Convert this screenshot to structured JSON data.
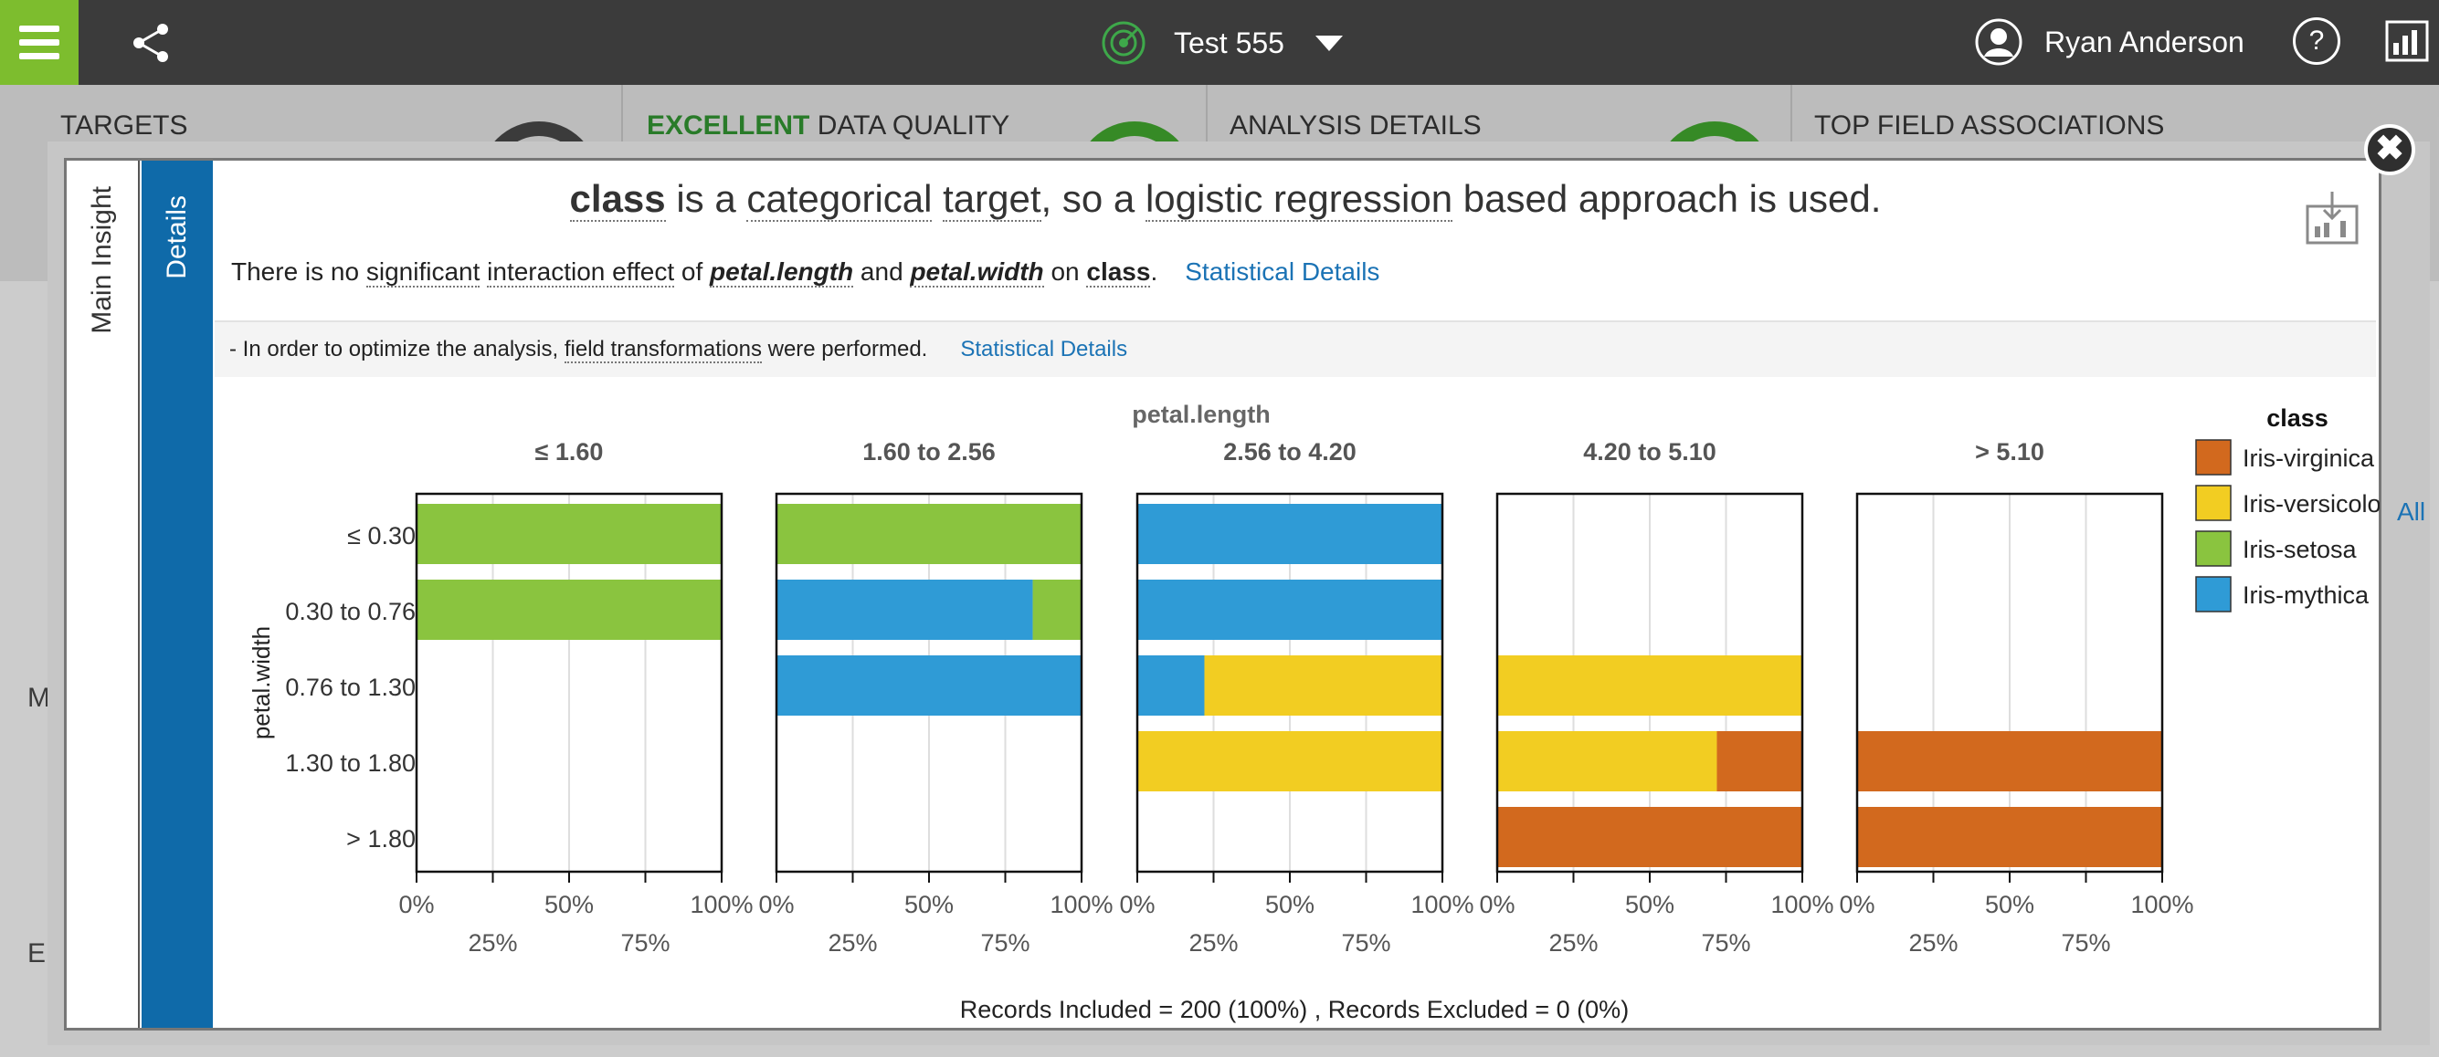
{
  "app": {
    "project_title": "Test 555",
    "user_name": "Ryan Anderson",
    "help_label": "?"
  },
  "dashboard_bg": {
    "cards": [
      {
        "title": "TARGETS",
        "highlight": ""
      },
      {
        "title": " DATA QUALITY",
        "highlight": "EXCELLENT"
      },
      {
        "title": "ANALYSIS DETAILS",
        "highlight": ""
      },
      {
        "title": "TOP FIELD ASSOCIATIONS",
        "highlight": ""
      }
    ],
    "side_letters": [
      "M",
      "E"
    ],
    "right_link": "All"
  },
  "modal": {
    "close_label": "✖",
    "tabs": {
      "main": "Main Insight",
      "details": "Details"
    },
    "headline": {
      "w1": "class",
      "w2": " is a ",
      "w3": "categorical",
      "w4": " ",
      "w5": "target",
      "w6": ", so a ",
      "w7": "logistic regression",
      "w8": " based approach is used."
    },
    "subline": {
      "s1": "There is no ",
      "s2": "significant",
      "s3": " ",
      "s4": "interaction effect",
      "s5": " of ",
      "s6": "petal.length",
      "s7": " and ",
      "s8": "petal.width",
      "s9": " on ",
      "s10": "class",
      "s11": ".",
      "link": "Statistical Details"
    },
    "note": {
      "n1": "- In order to optimize the analysis, ",
      "n2": "field transformations",
      "n3": " were performed.",
      "link": "Statistical Details"
    }
  },
  "chart_data": {
    "type": "bar",
    "orientation": "horizontal-stacked-100",
    "panel_title": "petal.length",
    "panels": [
      "≤ 1.60",
      "1.60 to 2.56",
      "2.56 to 4.20",
      "4.20 to 5.10",
      "> 5.10"
    ],
    "ylabel": "petal.width",
    "categories": [
      "≤ 0.30",
      "0.30 to 0.76",
      "0.76 to 1.30",
      "1.30 to 1.80",
      "> 1.80"
    ],
    "x_ticks_top": [
      "0%",
      "50%",
      "100%"
    ],
    "x_ticks_bottom": [
      "25%",
      "75%"
    ],
    "xlim": [
      0,
      100
    ],
    "grid": true,
    "legend_title": "class",
    "legend_position": "right",
    "series": [
      {
        "name": "Iris-virginica",
        "color": "#d2691e"
      },
      {
        "name": "Iris-versicolor",
        "color": "#f2cd22"
      },
      {
        "name": "Iris-setosa",
        "color": "#8ac43f"
      },
      {
        "name": "Iris-mythica",
        "color": "#2f9bd6"
      }
    ],
    "cells": [
      [
        {
          "Iris-setosa": 100
        },
        {
          "Iris-setosa": 100
        },
        {
          "Iris-mythica": 100
        },
        {},
        {}
      ],
      [
        {
          "Iris-setosa": 100
        },
        {
          "Iris-mythica": 84,
          "Iris-setosa": 16
        },
        {
          "Iris-mythica": 100
        },
        {},
        {}
      ],
      [
        {},
        {
          "Iris-mythica": 100
        },
        {
          "Iris-mythica": 22,
          "Iris-versicolor": 78
        },
        {
          "Iris-versicolor": 100
        },
        {}
      ],
      [
        {},
        {},
        {
          "Iris-versicolor": 100
        },
        {
          "Iris-versicolor": 72,
          "Iris-virginica": 28
        },
        {
          "Iris-virginica": 100
        }
      ],
      [
        {},
        {},
        {},
        {
          "Iris-virginica": 100
        },
        {
          "Iris-virginica": 100
        }
      ]
    ],
    "footer": "Records Included = 200 (100%) , Records Excluded = 0 (0%)"
  }
}
